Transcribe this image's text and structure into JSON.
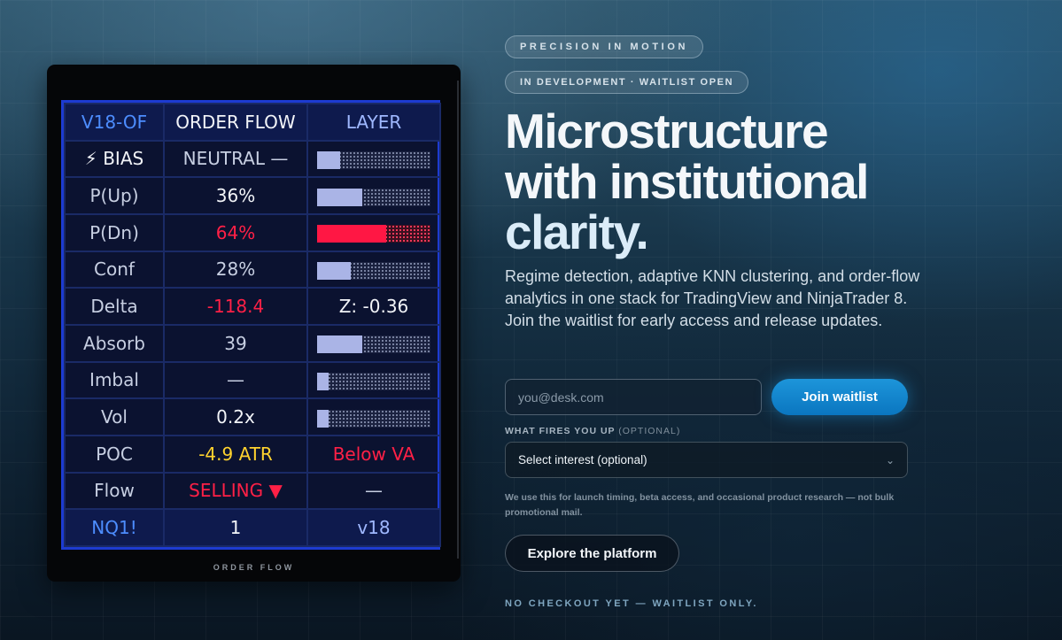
{
  "panel": {
    "header": [
      "V18-OF",
      "ORDER FLOW",
      "LAYER"
    ],
    "rows": [
      {
        "label": "⚡ BIAS",
        "value": "NEUTRAL —",
        "bar_fill": 0.2,
        "bar_color": "neutral"
      },
      {
        "label": "P(Up)",
        "value": "36%",
        "bar_fill": 0.4,
        "bar_color": "neutral"
      },
      {
        "label": "P(Dn)",
        "value": "64%",
        "bar_fill": 0.61,
        "bar_color": "red"
      },
      {
        "label": "Conf",
        "value": "28%",
        "bar_fill": 0.3,
        "bar_color": "neutral"
      },
      {
        "label": "Delta",
        "value": "-118.4",
        "right_text": "Z: -0.36"
      },
      {
        "label": "Absorb",
        "value": "39",
        "bar_fill": 0.4,
        "bar_color": "neutral"
      },
      {
        "label": "Imbal",
        "value": "—",
        "bar_fill": 0.1,
        "bar_color": "neutral"
      },
      {
        "label": "Vol",
        "value": "0.2x",
        "bar_fill": 0.1,
        "bar_color": "neutral"
      },
      {
        "label": "POC",
        "value": "-4.9 ATR",
        "right_text": "Below VA"
      },
      {
        "label": "Flow",
        "value": "SELLING ▼",
        "right_text": "—"
      }
    ],
    "footer": [
      "NQ1!",
      "1",
      "v18"
    ],
    "caption": "ORDER FLOW"
  },
  "badges": {
    "top": "PRECISION IN MOTION",
    "status": "IN DEVELOPMENT · WAITLIST OPEN"
  },
  "headline": {
    "line1": "Microstructure",
    "line2": "with institutional",
    "line3": "clarity."
  },
  "subtitle": "Regime detection, adaptive KNN clustering, and order-flow analytics in one stack for TradingView and NinjaTrader 8. Join the waitlist for early access and release updates.",
  "form": {
    "email_placeholder": "you@desk.com",
    "join_label": "Join waitlist",
    "interest_label": "WHAT FIRES YOU UP",
    "interest_optional": "(OPTIONAL)",
    "interest_selected": "Select interest (optional)",
    "note": "We use this for launch timing, beta access, and occasional product research — not bulk promotional mail."
  },
  "explore_label": "Explore the platform",
  "footer_note": "NO CHECKOUT YET — WAITLIST ONLY.",
  "colors": {
    "accent": "#1d95da",
    "panel_border": "#1d3bd1",
    "negative": "#ff2046",
    "warning": "#ffd22e"
  }
}
